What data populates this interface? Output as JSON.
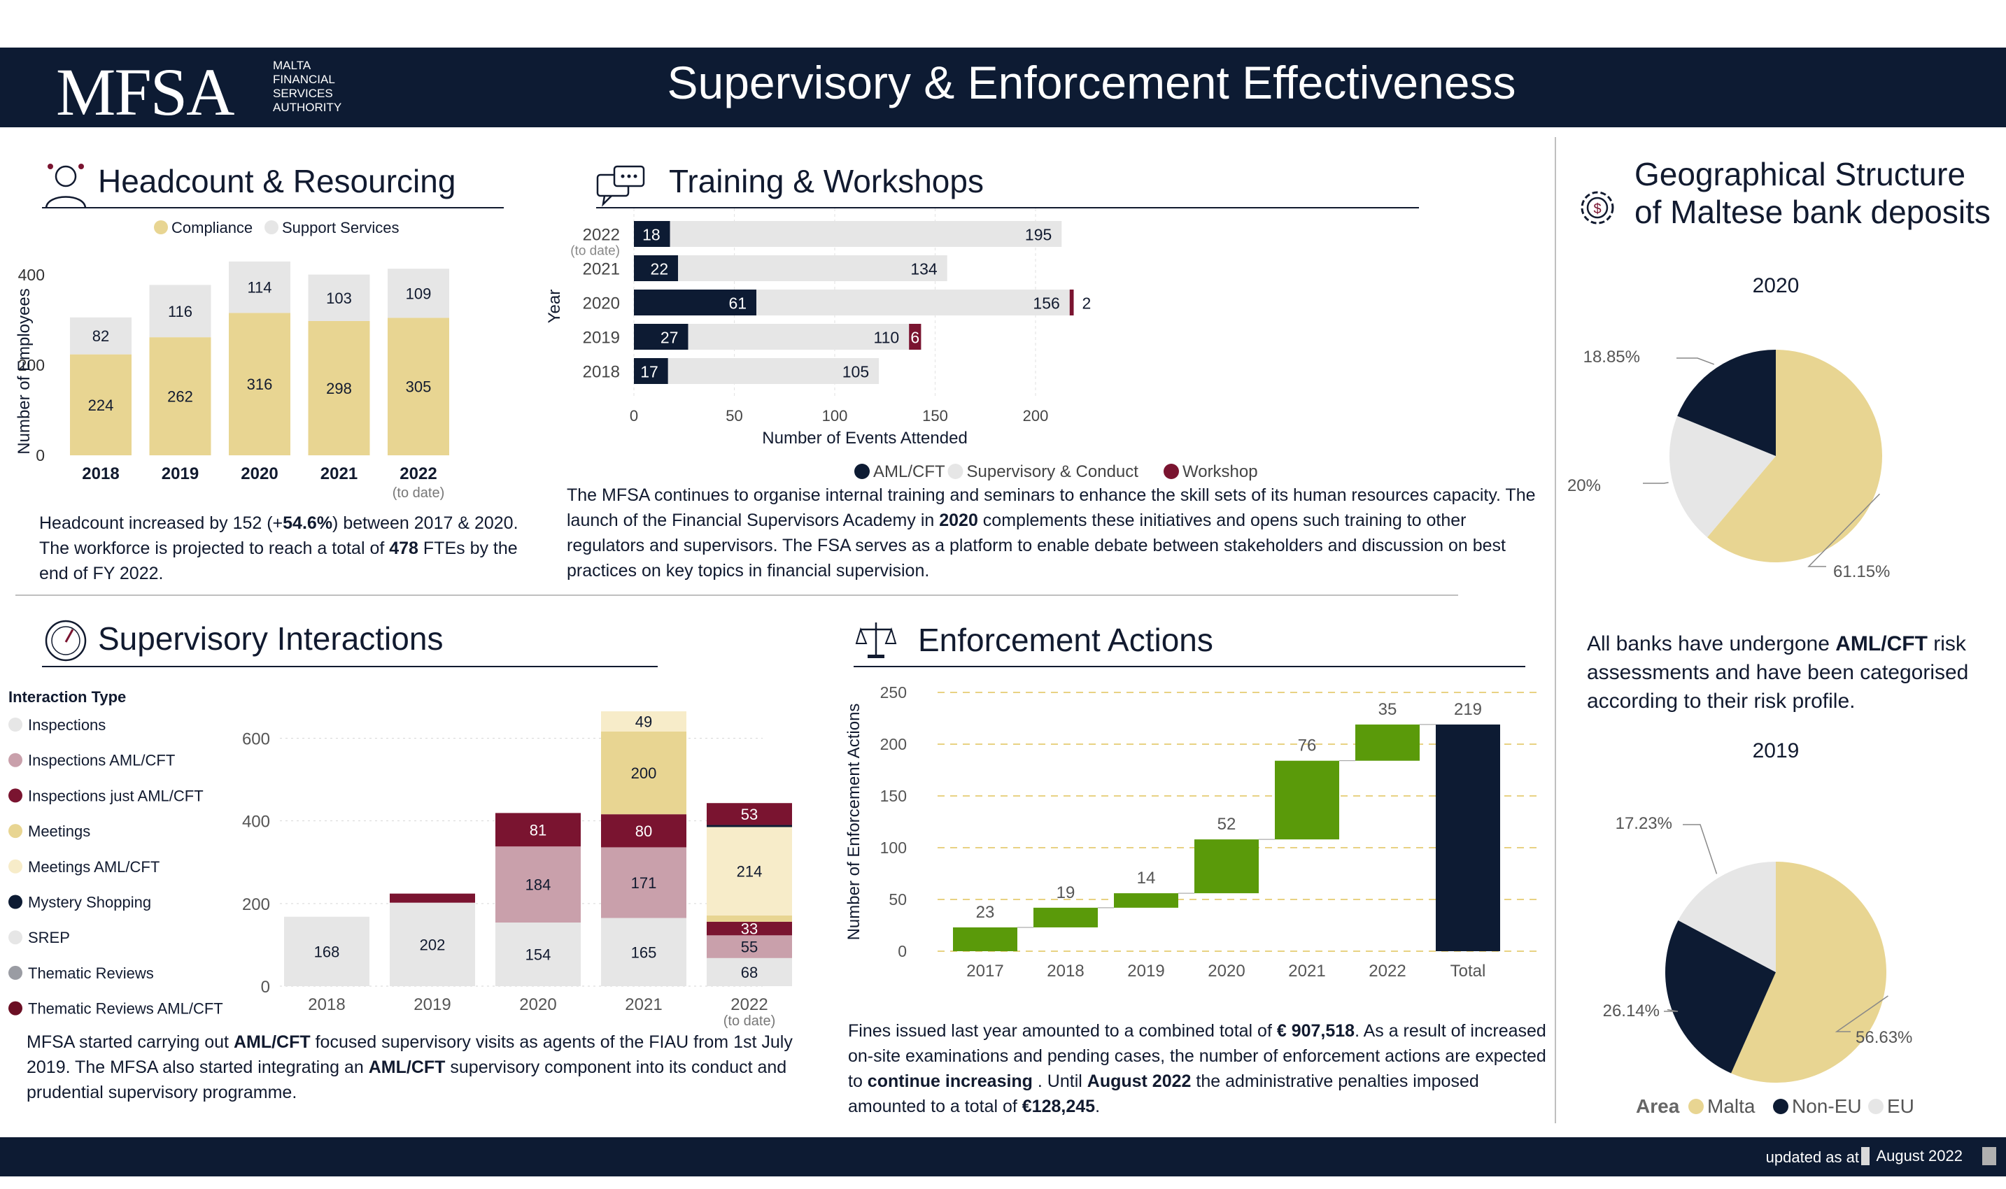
{
  "header": {
    "logo": "MFSA",
    "logo_sub": [
      "MALTA",
      "FINANCIAL",
      "SERVICES",
      "AUTHORITY"
    ],
    "title": "Supervisory & Enforcement Effectiveness"
  },
  "footer": {
    "label": "updated as at",
    "date": "August 2022"
  },
  "headcount": {
    "title": "Headcount & Resourcing",
    "text": "Headcount increased by 152 (+<b>54.6%</b>) between 2017 &amp; 2020. The workforce is projected to reach a total of <b>478</b> FTEs by the end of FY 2022."
  },
  "training": {
    "title": "Training & Workshops",
    "text": "The MFSA continues to organise internal training and seminars to enhance the skill sets of its human resources capacity. The launch of the Financial Supervisors Academy in <b>2020</b> complements these initiatives and opens such training to other regulators and supervisors. The FSA serves as a platform to enable debate between stakeholders and discussion on best practices on key topics in financial supervision."
  },
  "geo": {
    "title_lines": [
      "Geographical Structure",
      "of Maltese bank deposits"
    ],
    "text": "All banks have undergone <b>AML/CFT</b> risk assessments and have been categorised according to their risk profile."
  },
  "supervisory": {
    "title": "Supervisory Interactions",
    "text": "MFSA started carrying out <b>AML/CFT</b> focused supervisory visits as agents of the FIAU from 1st July 2019. The MFSA also started integrating an <b>AML/CFT</b> supervisory component into its conduct and prudential supervisory programme."
  },
  "enforcement": {
    "title": "Enforcement Actions",
    "text": "Fines issued last year amounted to a combined total of <b>€ 907,518</b>. As a result of increased on-site examinations and pending cases, the number of enforcement actions are expected to <b>continue increasing</b> . Until <b>August 2022</b> the administrative penalties imposed amounted to a total of <b>€128,245</b>."
  },
  "colors": {
    "navy": "#0d1b33",
    "gold": "#e8d592",
    "light_gray": "#e6e6e6",
    "maroon": "#7a1430",
    "pink": "#c9a0ab",
    "cream": "#f7ecc9",
    "green": "#5a9a0a",
    "gray_dark": "#9a9ca3"
  },
  "chart_data": [
    {
      "id": "headcount",
      "type": "bar",
      "stacked": true,
      "categories": [
        "2018",
        "2019",
        "2020",
        "2021",
        "2022"
      ],
      "category_note": {
        "2022": "(to date)"
      },
      "series": [
        {
          "name": "Compliance",
          "color": "#e8d592",
          "values": [
            224,
            262,
            316,
            298,
            305
          ]
        },
        {
          "name": "Support Services",
          "color": "#e6e6e6",
          "values": [
            82,
            116,
            114,
            103,
            109
          ]
        }
      ],
      "ylabel": "Number of Employees",
      "yticks": [
        0,
        200,
        400
      ],
      "ylim": [
        0,
        450
      ],
      "legend": "top"
    },
    {
      "id": "training",
      "type": "bar",
      "orientation": "horizontal",
      "stacked": true,
      "categories": [
        "2022",
        "2021",
        "2020",
        "2019",
        "2018"
      ],
      "category_note": {
        "2022": "(to date)"
      },
      "series": [
        {
          "name": "AML/CFT",
          "color": "#0d1b33",
          "values": [
            18,
            22,
            61,
            27,
            17
          ]
        },
        {
          "name": "Supervisory & Conduct",
          "color": "#e6e6e6",
          "values": [
            195,
            134,
            156,
            110,
            105
          ]
        },
        {
          "name": "Workshop",
          "color": "#7a1430",
          "values": [
            null,
            null,
            2,
            6,
            null
          ]
        }
      ],
      "xlabel": "Number of Events Attended",
      "ylabel": "Year",
      "xticks": [
        0,
        50,
        100,
        150,
        200
      ],
      "xlim": [
        0,
        220
      ],
      "legend": "bottom"
    },
    {
      "id": "deposits-2020",
      "type": "pie",
      "title": "2020",
      "slices": [
        {
          "label": "Malta",
          "value": 61.15,
          "text": "61.15%",
          "color": "#e8d592"
        },
        {
          "label": "EU",
          "value": 20,
          "text": "20%",
          "color": "#e6e6e6"
        },
        {
          "label": "Non-EU",
          "value": 18.85,
          "text": "18.85%",
          "color": "#0d1b33"
        }
      ]
    },
    {
      "id": "deposits-2019",
      "type": "pie",
      "title": "2019",
      "slices": [
        {
          "label": "Malta",
          "value": 56.63,
          "text": "56.63%",
          "color": "#e8d592"
        },
        {
          "label": "Non-EU",
          "value": 26.14,
          "text": "26.14%",
          "color": "#0d1b33"
        },
        {
          "label": "EU",
          "value": 17.23,
          "text": "17.23%",
          "color": "#e6e6e6"
        }
      ],
      "legend_title": "Area",
      "legend": [
        {
          "label": "Malta",
          "color": "#e8d592"
        },
        {
          "label": "Non-EU",
          "color": "#0d1b33"
        },
        {
          "label": "EU",
          "color": "#e6e6e6"
        }
      ]
    },
    {
      "id": "supervisory",
      "type": "bar",
      "stacked": true,
      "legend_title": "Interaction Type",
      "legend": [
        {
          "label": "Inspections",
          "color": "#e6e6e6"
        },
        {
          "label": "Inspections  AML/CFT",
          "color": "#c9a0ab"
        },
        {
          "label": "Inspections just AML/CFT",
          "color": "#7a1430"
        },
        {
          "label": "Meetings",
          "color": "#e8d592"
        },
        {
          "label": "Meetings  AML/CFT",
          "color": "#f7ecc9"
        },
        {
          "label": "Mystery Shopping",
          "color": "#0d1b33"
        },
        {
          "label": "SREP",
          "color": "#e6e6e6"
        },
        {
          "label": "Thematic Reviews",
          "color": "#9a9ca3"
        },
        {
          "label": "Thematic Reviews   AML/CFT",
          "color": "#6b0f24"
        }
      ],
      "categories": [
        "2018",
        "2019",
        "2020",
        "2021",
        "2022"
      ],
      "category_note": {
        "2022": "(to date)"
      },
      "segments": [
        [
          {
            "value": 168,
            "color": "#e6e6e6",
            "label": "168"
          }
        ],
        [
          {
            "value": 202,
            "color": "#e6e6e6",
            "label": "202"
          },
          {
            "value": 22,
            "color": "#7a1430",
            "label": ""
          }
        ],
        [
          {
            "value": 154,
            "color": "#e6e6e6",
            "label": "154"
          },
          {
            "value": 184,
            "color": "#c9a0ab",
            "label": "184"
          },
          {
            "value": 81,
            "color": "#7a1430",
            "label": "81"
          }
        ],
        [
          {
            "value": 165,
            "color": "#e6e6e6",
            "label": "165"
          },
          {
            "value": 171,
            "color": "#c9a0ab",
            "label": "171"
          },
          {
            "value": 80,
            "color": "#7a1430",
            "label": "80"
          },
          {
            "value": 200,
            "color": "#e8d592",
            "label": "200"
          },
          {
            "value": 49,
            "color": "#f7ecc9",
            "label": "49"
          }
        ],
        [
          {
            "value": 68,
            "color": "#e6e6e6",
            "label": "68"
          },
          {
            "value": 55,
            "color": "#c9a0ab",
            "label": "55"
          },
          {
            "value": 33,
            "color": "#7a1430",
            "label": "33"
          },
          {
            "value": 15,
            "color": "#e8d592",
            "label": ""
          },
          {
            "value": 214,
            "color": "#f7ecc9",
            "label": "214"
          },
          {
            "value": 5,
            "color": "#0d1b33",
            "label": ""
          },
          {
            "value": 53,
            "color": "#7a1430",
            "label": "53"
          }
        ]
      ],
      "yticks": [
        0,
        200,
        400,
        600
      ],
      "ylim": [
        0,
        660
      ],
      "grid": true
    },
    {
      "id": "enforcement",
      "type": "waterfall",
      "categories": [
        "2017",
        "2018",
        "2019",
        "2020",
        "2021",
        "2022",
        "Total"
      ],
      "values": [
        23,
        19,
        14,
        52,
        76,
        35,
        219
      ],
      "ylabel": "Number of Enforcement Actions",
      "yticks": [
        0,
        50,
        100,
        150,
        200,
        250
      ],
      "ylim": [
        0,
        260
      ],
      "grid": true
    }
  ]
}
